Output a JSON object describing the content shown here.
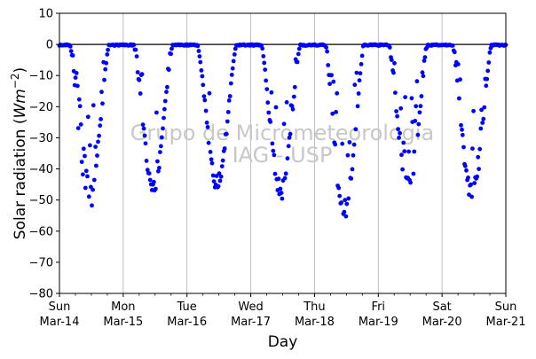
{
  "chart_data": {
    "type": "scatter",
    "title": "",
    "xlabel": "Day",
    "ylabel": "Solar radiation (Wm⁻²)",
    "ylabel_parts": {
      "text": "Solar radiation (",
      "unit": "Wm",
      "exp": "−2",
      "close": ")"
    },
    "ylim": [
      -80,
      10
    ],
    "yticks": [
      10,
      0,
      -10,
      -20,
      -30,
      -40,
      -50,
      -60,
      -70,
      -80
    ],
    "xlim": [
      0,
      7
    ],
    "xticks": [
      {
        "x": 0,
        "line1": "Sun",
        "line2": "Mar-14"
      },
      {
        "x": 1,
        "line1": "Mon",
        "line2": "Mar-15"
      },
      {
        "x": 2,
        "line1": "Tue",
        "line2": "Mar-16"
      },
      {
        "x": 3,
        "line1": "Wed",
        "line2": "Mar-17"
      },
      {
        "x": 4,
        "line1": "Thu",
        "line2": "Mar-18"
      },
      {
        "x": 5,
        "line1": "Fri",
        "line2": "Mar-19"
      },
      {
        "x": 6,
        "line1": "Sat",
        "line2": "Mar-20"
      },
      {
        "x": 7,
        "line1": "Sun",
        "line2": "Mar-21"
      }
    ],
    "grid": "vertical",
    "reference_line": 0,
    "marker_color": "#0000ff",
    "days": [
      {
        "start": "Mar-14",
        "min": -54
      },
      {
        "start": "Mar-15",
        "min": -48
      },
      {
        "start": "Mar-16",
        "min": -47
      },
      {
        "start": "Mar-17",
        "min": -50
      },
      {
        "start": "Mar-18",
        "min": -57
      },
      {
        "start": "Mar-19",
        "min": -49
      },
      {
        "start": "Mar-20",
        "min": -51
      }
    ]
  },
  "watermark": {
    "line1": "Grupo de Micrometeorologia",
    "line2": "IAG - USP"
  }
}
